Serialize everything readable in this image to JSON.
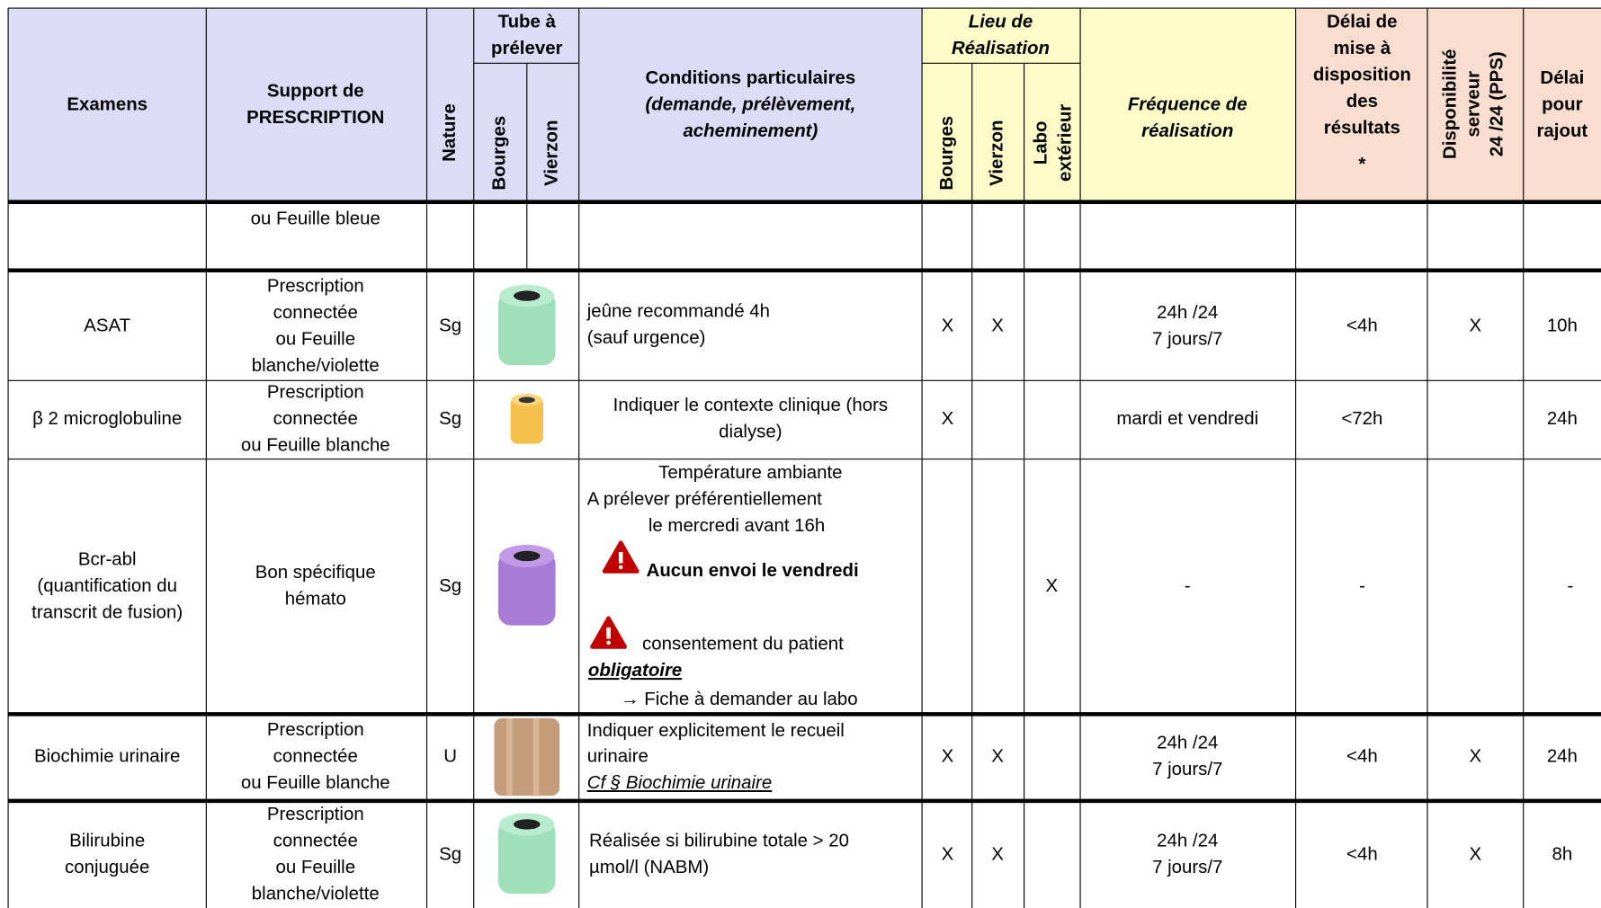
{
  "header": {
    "examens": "Examens",
    "support": [
      "Support de",
      "PRESCRIPTION"
    ],
    "nature": "Nature",
    "tube": {
      "title": [
        "Tube à",
        "prélever"
      ],
      "bourges": "Bourges",
      "vierzon": "Vierzon"
    },
    "conditions": [
      "Conditions particulaires",
      "(demande, prélèvement,",
      "acheminement)"
    ],
    "lieu": {
      "title": [
        "Lieu  de",
        "Réalisation"
      ],
      "bourges": "Bourges",
      "vierzon": "Vierzon",
      "labo": [
        "Labo",
        "extérieur"
      ]
    },
    "frequence": [
      "Fréquence de",
      "réalisation"
    ],
    "delai": [
      "Délai de",
      "mise à",
      "disposition",
      "des",
      "résultats"
    ],
    "delai_marker": "*",
    "disponibilite": [
      "Disponibilité",
      "serveur",
      "24 /24 (PPS)"
    ],
    "rajout": [
      "Délai",
      "pour",
      "rajout"
    ]
  },
  "rows": [
    {
      "support": [
        "ou Feuille bleue"
      ]
    },
    {
      "examen": [
        "ASAT"
      ],
      "support": [
        "Prescription",
        "connectée",
        "ou Feuille",
        "blanche/violette"
      ],
      "nature": "Sg",
      "conditions": [
        "jeûne recommandé 4h",
        "(sauf urgence)"
      ],
      "bourges": "X",
      "vierzon": "X",
      "frequence": [
        "24h /24",
        "7 jours/7"
      ],
      "delai": "<4h",
      "dispo": "X",
      "rajout": "10h"
    },
    {
      "examen": [
        "β 2 microglobuline"
      ],
      "support": [
        "Prescription",
        "connectée",
        "ou Feuille blanche"
      ],
      "nature": "Sg",
      "conditions": [
        "Indiquer le contexte clinique (hors",
        "dialyse)"
      ],
      "bourges": "X",
      "frequence": [
        "mardi et vendredi"
      ],
      "delai": "<72h",
      "rajout": "24h"
    },
    {
      "examen": [
        "Bcr-abl",
        "(quantification du",
        "transcrit de fusion)"
      ],
      "support": [
        "Bon spécifique",
        "hémato"
      ],
      "nature": "Sg",
      "conditions": [
        "Température ambiante",
        "A prélever préférentiellement",
        "le mercredi avant 16h",
        "Aucun envoi le vendredi",
        "consentement du patient",
        "obligatoire",
        "→  Fiche à demander au labo"
      ],
      "labo": "X",
      "frequence": [
        "-"
      ],
      "delai": "-",
      "rajout": "-"
    },
    {
      "examen": [
        "Biochimie urinaire"
      ],
      "support": [
        "Prescription",
        "connectée",
        "ou Feuille blanche"
      ],
      "nature": "U",
      "conditions": [
        "Indiquer explicitement le recueil",
        "urinaire",
        "Cf § Biochimie urinaire"
      ],
      "bourges": "X",
      "vierzon": "X",
      "frequence": [
        "24h /24",
        "7 jours/7"
      ],
      "delai": "<4h",
      "dispo": "X",
      "rajout": "24h"
    },
    {
      "examen": [
        "Bilirubine",
        "conjuguée"
      ],
      "support": [
        "Prescription",
        "connectée",
        "ou Feuille",
        "blanche/violette"
      ],
      "nature": "Sg",
      "conditions": [
        " Réalisée si bilirubine totale > 20",
        "µmol/l (NABM)"
      ],
      "bourges": "X",
      "vierzon": "X",
      "frequence": [
        "24h /24",
        "7 jours/7"
      ],
      "delai": "<4h",
      "dispo": "X",
      "rajout": "8h"
    }
  ]
}
